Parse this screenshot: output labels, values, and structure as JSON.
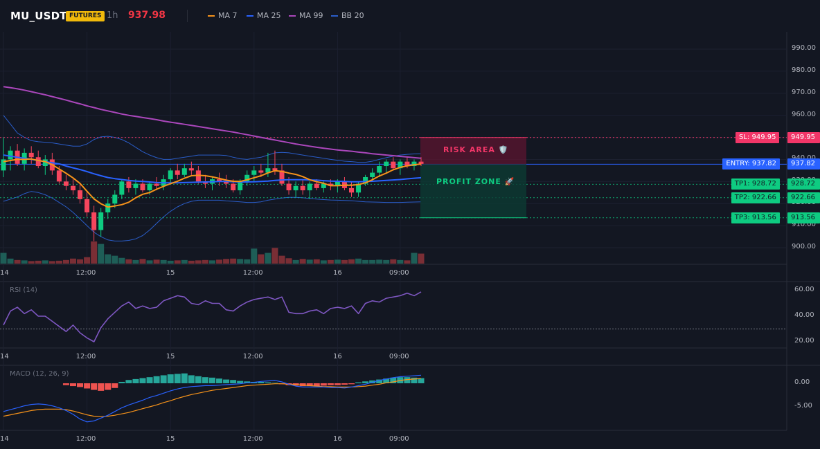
{
  "header": {
    "symbol": "MU_USDT",
    "market_badge": "FUTURES",
    "timeframe": "1h",
    "last_price": "937.98",
    "legend": [
      {
        "label": "MA 7",
        "color": "#f7931a"
      },
      {
        "label": "MA 25",
        "color": "#2962ff"
      },
      {
        "label": "MA 99",
        "color": "#ab47bc"
      },
      {
        "label": "BB 20",
        "color": "#2a5dc9"
      }
    ]
  },
  "colors": {
    "up": "#26a69a",
    "down": "#ef5350",
    "candle_up": "#0ecb81",
    "candle_down": "#f6465d"
  },
  "trade": {
    "sl": {
      "label": "SL: 949.95",
      "price": 949.95,
      "axis": "949.95"
    },
    "entry": {
      "label": "ENTRY: 937.82",
      "price": 937.82,
      "axis": "937.82"
    },
    "tps": [
      {
        "label": "TP1: 928.72",
        "price": 928.72,
        "axis": "928.72"
      },
      {
        "label": "TP2: 922.66",
        "price": 922.66,
        "axis": "922.66"
      },
      {
        "label": "TP3: 913.56",
        "price": 913.56,
        "axis": "913.56"
      }
    ],
    "risk_label": "RISK AREA 🛡️",
    "profit_label": "PROFIT ZONE 🚀"
  },
  "chart_data": {
    "type": "candlestick",
    "price_axis": {
      "ticks": [
        "990.00",
        "980.00",
        "970.00",
        "960.00",
        "950.00",
        "940.00",
        "930.00",
        "920.00",
        "910.00",
        "900.00"
      ],
      "range": [
        895,
        995
      ]
    },
    "x_labels": [
      {
        "text": "14",
        "i": 0
      },
      {
        "text": "12:00",
        "i": 12
      },
      {
        "text": "15",
        "i": 24
      },
      {
        "text": "12:00",
        "i": 36
      },
      {
        "text": "16",
        "i": 48
      },
      {
        "text": "09:00",
        "i": 57
      }
    ],
    "candles": [
      {
        "o": 935,
        "h": 950,
        "l": 932,
        "c": 940
      },
      {
        "o": 940,
        "h": 946,
        "l": 935,
        "c": 944
      },
      {
        "o": 944,
        "h": 947,
        "l": 937,
        "c": 938
      },
      {
        "o": 938,
        "h": 945,
        "l": 935,
        "c": 943
      },
      {
        "o": 943,
        "h": 946,
        "l": 938,
        "c": 941
      },
      {
        "o": 941,
        "h": 944,
        "l": 936,
        "c": 937
      },
      {
        "o": 937,
        "h": 942,
        "l": 933,
        "c": 940
      },
      {
        "o": 940,
        "h": 943,
        "l": 933,
        "c": 935
      },
      {
        "o": 935,
        "h": 937,
        "l": 929,
        "c": 930
      },
      {
        "o": 930,
        "h": 933,
        "l": 926,
        "c": 928
      },
      {
        "o": 928,
        "h": 931,
        "l": 924,
        "c": 926
      },
      {
        "o": 926,
        "h": 929,
        "l": 920,
        "c": 922
      },
      {
        "o": 922,
        "h": 925,
        "l": 914,
        "c": 916
      },
      {
        "o": 916,
        "h": 919,
        "l": 903,
        "c": 908
      },
      {
        "o": 908,
        "h": 918,
        "l": 905,
        "c": 916
      },
      {
        "o": 916,
        "h": 922,
        "l": 913,
        "c": 920
      },
      {
        "o": 920,
        "h": 926,
        "l": 918,
        "c": 924
      },
      {
        "o": 924,
        "h": 931,
        "l": 922,
        "c": 930
      },
      {
        "o": 930,
        "h": 932,
        "l": 925,
        "c": 927
      },
      {
        "o": 927,
        "h": 931,
        "l": 924,
        "c": 929
      },
      {
        "o": 929,
        "h": 931,
        "l": 925,
        "c": 926
      },
      {
        "o": 926,
        "h": 930,
        "l": 924,
        "c": 929
      },
      {
        "o": 929,
        "h": 932,
        "l": 926,
        "c": 928
      },
      {
        "o": 928,
        "h": 933,
        "l": 926,
        "c": 931
      },
      {
        "o": 931,
        "h": 936,
        "l": 929,
        "c": 935
      },
      {
        "o": 935,
        "h": 938,
        "l": 931,
        "c": 933
      },
      {
        "o": 933,
        "h": 938,
        "l": 932,
        "c": 936
      },
      {
        "o": 936,
        "h": 939,
        "l": 933,
        "c": 935
      },
      {
        "o": 935,
        "h": 937,
        "l": 929,
        "c": 930
      },
      {
        "o": 930,
        "h": 933,
        "l": 927,
        "c": 929
      },
      {
        "o": 929,
        "h": 932,
        "l": 926,
        "c": 931
      },
      {
        "o": 931,
        "h": 934,
        "l": 928,
        "c": 930
      },
      {
        "o": 930,
        "h": 933,
        "l": 927,
        "c": 929
      },
      {
        "o": 929,
        "h": 931,
        "l": 925,
        "c": 926
      },
      {
        "o": 926,
        "h": 931,
        "l": 924,
        "c": 930
      },
      {
        "o": 930,
        "h": 935,
        "l": 928,
        "c": 933
      },
      {
        "o": 933,
        "h": 937,
        "l": 930,
        "c": 935
      },
      {
        "o": 935,
        "h": 938,
        "l": 932,
        "c": 934
      },
      {
        "o": 934,
        "h": 943,
        "l": 932,
        "c": 936
      },
      {
        "o": 936,
        "h": 944,
        "l": 933,
        "c": 935
      },
      {
        "o": 935,
        "h": 938,
        "l": 928,
        "c": 929
      },
      {
        "o": 929,
        "h": 932,
        "l": 924,
        "c": 926
      },
      {
        "o": 926,
        "h": 930,
        "l": 923,
        "c": 928
      },
      {
        "o": 928,
        "h": 931,
        "l": 924,
        "c": 926
      },
      {
        "o": 926,
        "h": 930,
        "l": 922,
        "c": 929
      },
      {
        "o": 929,
        "h": 931,
        "l": 926,
        "c": 927
      },
      {
        "o": 927,
        "h": 930,
        "l": 925,
        "c": 929
      },
      {
        "o": 929,
        "h": 931,
        "l": 926,
        "c": 928
      },
      {
        "o": 928,
        "h": 931,
        "l": 925,
        "c": 930
      },
      {
        "o": 930,
        "h": 932,
        "l": 926,
        "c": 927
      },
      {
        "o": 927,
        "h": 930,
        "l": 923,
        "c": 925
      },
      {
        "o": 925,
        "h": 930,
        "l": 923,
        "c": 929
      },
      {
        "o": 929,
        "h": 933,
        "l": 928,
        "c": 932
      },
      {
        "o": 932,
        "h": 936,
        "l": 930,
        "c": 934
      },
      {
        "o": 934,
        "h": 939,
        "l": 932,
        "c": 937
      },
      {
        "o": 937,
        "h": 940,
        "l": 934,
        "c": 939
      },
      {
        "o": 939,
        "h": 941,
        "l": 935,
        "c": 936
      },
      {
        "o": 936,
        "h": 940,
        "l": 933,
        "c": 939
      },
      {
        "o": 939,
        "h": 941,
        "l": 936,
        "c": 937
      },
      {
        "o": 937,
        "h": 940,
        "l": 935,
        "c": 939
      },
      {
        "o": 939,
        "h": 941,
        "l": 937,
        "c": 937.98
      }
    ],
    "ma7": [
      939,
      939.5,
      940,
      940,
      940.2,
      939.5,
      939,
      937.6,
      935.7,
      933.7,
      931.6,
      929.1,
      925.6,
      922.1,
      919.9,
      918.4,
      918.9,
      919.5,
      920.6,
      922.6,
      924.2,
      925,
      926.5,
      927.8,
      929,
      930.1,
      931.5,
      932.6,
      932.8,
      932.6,
      932.1,
      931.4,
      930.6,
      930.1,
      930,
      930.8,
      931.7,
      932.6,
      933.9,
      934.9,
      934.6,
      933.8,
      933.2,
      932.2,
      930.8,
      929.9,
      929.2,
      928.1,
      928.1,
      928.3,
      928.3,
      928.6,
      929.4,
      930.8,
      932.5,
      933.8,
      935.3,
      936.4,
      937.1,
      937.6,
      937.9
    ],
    "ma25": [
      942,
      941.5,
      941,
      940.5,
      940,
      939.5,
      939,
      938.5,
      938,
      937,
      936.2,
      935.4,
      934.5,
      933.5,
      932.6,
      931.8,
      931.3,
      930.9,
      930.5,
      930.2,
      930,
      929.8,
      929.5,
      929.4,
      929.4,
      929.4,
      929.5,
      929.6,
      929.7,
      929.8,
      929.9,
      930,
      930,
      929.9,
      929.8,
      929.8,
      929.9,
      930,
      930.2,
      930.5,
      930.7,
      930.8,
      930.8,
      930.8,
      930.7,
      930.6,
      930.4,
      930.2,
      930.1,
      930,
      929.9,
      929.9,
      930,
      930.1,
      930.3,
      930.5,
      930.7,
      930.9,
      931.2,
      931.5,
      931.7
    ],
    "ma99": [
      973,
      972.5,
      972,
      971.4,
      970.7,
      970,
      969.3,
      968.5,
      967.7,
      966.9,
      966,
      965.2,
      964.3,
      963.5,
      962.7,
      962,
      961.3,
      960.6,
      960,
      959.5,
      959,
      958.5,
      958,
      957.4,
      956.9,
      956.4,
      955.9,
      955.4,
      954.9,
      954.4,
      953.9,
      953.4,
      952.9,
      952.4,
      951.8,
      951.2,
      950.6,
      950,
      949.4,
      948.8,
      948.2,
      947.6,
      947,
      946.5,
      946,
      945.5,
      945.1,
      944.7,
      944.3,
      944,
      943.7,
      943.3,
      943,
      942.6,
      942.3,
      942,
      941.7,
      941.4,
      941.1,
      940.8,
      940.5
    ],
    "bb_upper": [
      960,
      956,
      952,
      950,
      948.5,
      948,
      947.8,
      947.5,
      947,
      946.5,
      946,
      946,
      947,
      949,
      950.2,
      950.5,
      950,
      949,
      947.5,
      945.5,
      943.5,
      942,
      940.8,
      940,
      940,
      940.5,
      941,
      941.5,
      942,
      942,
      942,
      942,
      941.8,
      941,
      940.3,
      940,
      940.5,
      941,
      942,
      943,
      943.2,
      943,
      942.5,
      942,
      941.5,
      941,
      940.5,
      940,
      939.6,
      939.2,
      939,
      938.7,
      938.7,
      939.2,
      940,
      940.8,
      941.5,
      942,
      942.3,
      942.5,
      942.6
    ],
    "bb_lower": [
      921,
      922,
      923,
      924.5,
      925.5,
      925,
      924,
      922.5,
      920.5,
      918.5,
      916,
      913,
      910,
      907,
      905,
      903.5,
      903,
      903,
      903.3,
      904,
      905.5,
      908,
      911,
      914,
      916.5,
      918.5,
      920,
      921,
      921.5,
      921.5,
      921.5,
      921.5,
      921.2,
      921,
      920.8,
      920.5,
      920.5,
      920.8,
      921.5,
      922,
      922.5,
      922.8,
      922.8,
      922.6,
      922.3,
      922,
      921.8,
      921.6,
      921.5,
      921.4,
      921.3,
      921,
      920.8,
      920.7,
      920.6,
      920.5,
      920.5,
      920.5,
      920.6,
      920.7,
      920.8
    ],
    "volume": [
      30,
      14,
      10,
      9,
      7,
      8,
      9,
      7,
      8,
      10,
      14,
      12,
      18,
      62,
      55,
      26,
      22,
      16,
      12,
      10,
      13,
      9,
      11,
      10,
      8,
      9,
      10,
      8,
      9,
      10,
      9,
      11,
      13,
      14,
      13,
      12,
      42,
      26,
      30,
      44,
      22,
      15,
      10,
      13,
      11,
      12,
      9,
      10,
      11,
      10,
      12,
      14,
      10,
      10,
      11,
      10,
      12,
      10,
      9,
      30,
      28
    ],
    "rsi": {
      "title": "RSI (14)",
      "ticks": [
        "60.00",
        "40.00",
        "20.00"
      ],
      "range": [
        15,
        65
      ],
      "level": 30,
      "values": [
        33,
        44,
        47,
        42,
        45,
        40,
        40,
        36,
        32,
        28,
        33,
        27,
        23,
        20,
        31,
        38,
        43,
        48,
        51,
        46,
        48,
        46,
        47,
        52,
        54,
        56,
        55,
        50,
        49,
        52,
        50,
        50,
        45,
        44,
        48,
        51,
        53,
        54,
        55,
        53,
        55,
        43,
        42,
        42,
        44,
        45,
        42,
        46,
        47,
        46,
        48,
        42,
        50,
        52,
        51,
        54,
        55,
        56,
        58,
        56,
        59
      ]
    },
    "macd": {
      "title": "MACD (12, 26, 9)",
      "ticks": [
        "0.00",
        "-5.00"
      ],
      "range": [
        -9,
        3.5
      ],
      "hist": [
        0,
        0,
        0,
        0,
        0,
        0,
        0,
        0,
        0,
        -0.4,
        -0.6,
        -0.8,
        -1.1,
        -1.4,
        -1.6,
        -1.4,
        -1.0,
        0.3,
        0.7,
        0.9,
        1.1,
        1.3,
        1.5,
        1.7,
        1.9,
        2.0,
        2.1,
        1.7,
        1.5,
        1.3,
        1.2,
        1.0,
        0.8,
        0.7,
        0.5,
        0.4,
        0.3,
        0.3,
        0.2,
        0.1,
        -0.2,
        -0.4,
        -0.5,
        -0.6,
        -0.6,
        -0.6,
        -0.5,
        -0.4,
        -0.4,
        -0.3,
        -0.2,
        0.2,
        0.4,
        0.6,
        0.8,
        1.0,
        1.2,
        1.3,
        1.3,
        1.2,
        1.1
      ],
      "macd": [
        -6,
        -5.6,
        -5.2,
        -4.8,
        -4.5,
        -4.4,
        -4.5,
        -4.8,
        -5.2,
        -5.8,
        -6.6,
        -7.6,
        -8.2,
        -8.0,
        -7.4,
        -6.8,
        -6.0,
        -5.2,
        -4.6,
        -4.1,
        -3.6,
        -3.0,
        -2.6,
        -2.1,
        -1.6,
        -1.2,
        -0.9,
        -0.7,
        -0.6,
        -0.5,
        -0.5,
        -0.4,
        -0.3,
        -0.2,
        -0.1,
        0.1,
        0.2,
        0.4,
        0.5,
        0.6,
        0.3,
        -0.2,
        -0.6,
        -0.8,
        -0.8,
        -0.8,
        -0.8,
        -0.9,
        -0.9,
        -1.0,
        -0.8,
        -0.5,
        -0.2,
        0.2,
        0.6,
        0.9,
        1.2,
        1.4,
        1.5,
        1.6,
        1.7
      ],
      "signal": [
        -7,
        -6.7,
        -6.4,
        -6.1,
        -5.8,
        -5.6,
        -5.5,
        -5.5,
        -5.5,
        -5.6,
        -5.9,
        -6.3,
        -6.7,
        -7.0,
        -7.1,
        -7.0,
        -6.8,
        -6.5,
        -6.2,
        -5.8,
        -5.4,
        -5.0,
        -4.6,
        -4.1,
        -3.7,
        -3.2,
        -2.8,
        -2.4,
        -2.1,
        -1.8,
        -1.5,
        -1.3,
        -1.1,
        -0.9,
        -0.7,
        -0.5,
        -0.4,
        -0.3,
        -0.2,
        -0.1,
        -0.1,
        -0.2,
        -0.3,
        -0.4,
        -0.5,
        -0.6,
        -0.7,
        -0.7,
        -0.8,
        -0.8,
        -0.8,
        -0.7,
        -0.6,
        -0.4,
        -0.2,
        0.1,
        0.3,
        0.6,
        0.8,
        0.9,
        1.0
      ]
    }
  }
}
